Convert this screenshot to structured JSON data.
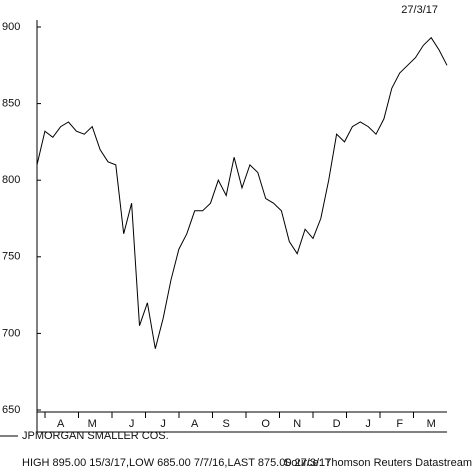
{
  "chart_data": {
    "type": "line",
    "date": "27/3/17",
    "categories": [
      null,
      null,
      null,
      "A",
      null,
      null,
      null,
      "M",
      null,
      null,
      null,
      null,
      "J",
      null,
      null,
      null,
      "J",
      null,
      null,
      null,
      "A",
      null,
      null,
      null,
      "S",
      null,
      null,
      null,
      null,
      "O",
      null,
      null,
      null,
      "N",
      null,
      null,
      null,
      null,
      "D",
      null,
      null,
      null,
      "J",
      null,
      null,
      null,
      "F",
      null,
      null,
      null,
      "M",
      null,
      null
    ],
    "series": [
      {
        "name": "JPMORGAN SMALLER COS.",
        "color": "#000000",
        "values": [
          810,
          832,
          828,
          835,
          838,
          832,
          830,
          835,
          820,
          812,
          810,
          765,
          785,
          705,
          720,
          690,
          710,
          735,
          755,
          765,
          780,
          780,
          785,
          800,
          790,
          815,
          795,
          810,
          805,
          788,
          785,
          780,
          760,
          752,
          768,
          762,
          775,
          800,
          830,
          825,
          835,
          838,
          835,
          830,
          840,
          860,
          870,
          875,
          880,
          888,
          893,
          885,
          875
        ]
      }
    ],
    "ylim": [
      650,
      900
    ],
    "yticks": [
      650,
      700,
      750,
      800,
      850,
      900
    ],
    "footer": "HIGH 895.00 15/3/17,LOW 685.00 7/7/16,LAST 875.00 27/3/17",
    "source": "Source: Thomson Reuters Datastream"
  }
}
